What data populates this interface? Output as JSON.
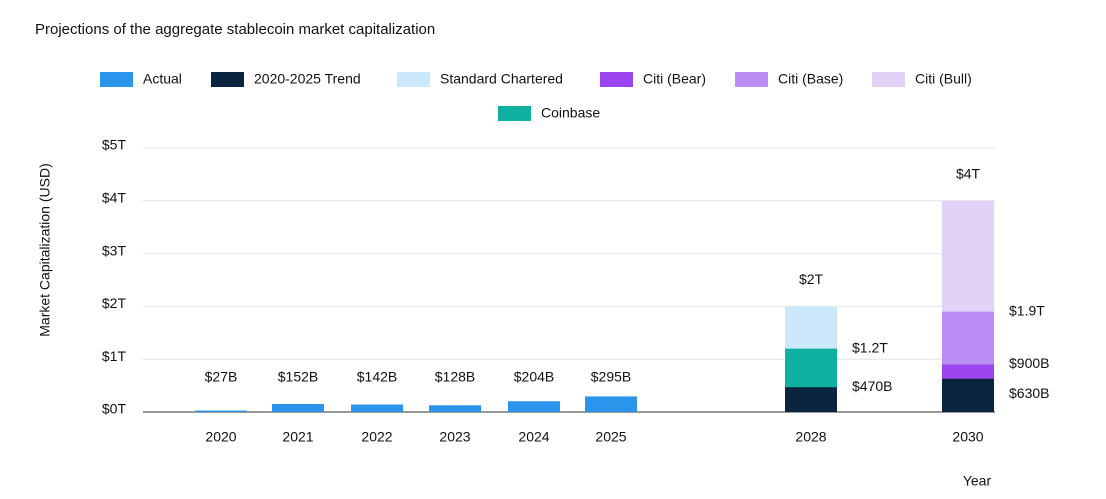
{
  "chart_data": {
    "type": "bar",
    "title": "Projections of the aggregate stablecoin market capitalization",
    "y_label": "Market Capitalization (USD)",
    "x_label": "Year",
    "categories": [
      "2020",
      "2021",
      "2022",
      "2023",
      "2024",
      "2025",
      "2028",
      "2030"
    ],
    "ylim": [
      0,
      5
    ],
    "yticks": [
      {
        "value": 0,
        "label": "$0T"
      },
      {
        "value": 1,
        "label": "$1T"
      },
      {
        "value": 2,
        "label": "$2T"
      },
      {
        "value": 3,
        "label": "$3T"
      },
      {
        "value": 4,
        "label": "$4T"
      },
      {
        "value": 5,
        "label": "$5T"
      }
    ],
    "grid": true,
    "series": [
      {
        "name": "Actual",
        "color": "#2b95ec",
        "values": [
          0.027,
          0.152,
          0.142,
          0.128,
          0.204,
          0.295,
          null,
          null
        ],
        "value_labels": [
          "$27B",
          "$152B",
          "$142B",
          "$128B",
          "$204B",
          "$295B",
          null,
          null
        ]
      },
      {
        "name": "2020-2025 Trend",
        "color": "#0b2540",
        "values": [
          null,
          null,
          null,
          null,
          null,
          null,
          0.47,
          0.63
        ],
        "value_labels": [
          null,
          null,
          null,
          null,
          null,
          null,
          "$470B",
          "$630B"
        ]
      },
      {
        "name": "Standard Chartered",
        "color": "#cce8fb",
        "values": [
          null,
          null,
          null,
          null,
          null,
          null,
          2,
          null
        ],
        "value_labels": [
          null,
          null,
          null,
          null,
          null,
          null,
          "$2T",
          null
        ]
      },
      {
        "name": "Citi (Bear)",
        "color": "#9b45f0",
        "values": [
          null,
          null,
          null,
          null,
          null,
          null,
          null,
          0.9
        ],
        "value_labels": [
          null,
          null,
          null,
          null,
          null,
          null,
          null,
          "$900B"
        ]
      },
      {
        "name": "Citi (Base)",
        "color": "#bb8ef5",
        "values": [
          null,
          null,
          null,
          null,
          null,
          null,
          null,
          1.9
        ],
        "value_labels": [
          null,
          null,
          null,
          null,
          null,
          null,
          null,
          "$1.9T"
        ]
      },
      {
        "name": "Citi (Bull)",
        "color": "#e2d2f7",
        "values": [
          null,
          null,
          null,
          null,
          null,
          null,
          null,
          4
        ],
        "value_labels": [
          null,
          null,
          null,
          null,
          null,
          null,
          null,
          "$4T"
        ]
      },
      {
        "name": "Coinbase",
        "color": "#0fb0a0",
        "values": [
          null,
          null,
          null,
          null,
          null,
          null,
          1.2,
          null
        ],
        "value_labels": [
          null,
          null,
          null,
          null,
          null,
          null,
          "$1.2T",
          null
        ]
      }
    ]
  }
}
